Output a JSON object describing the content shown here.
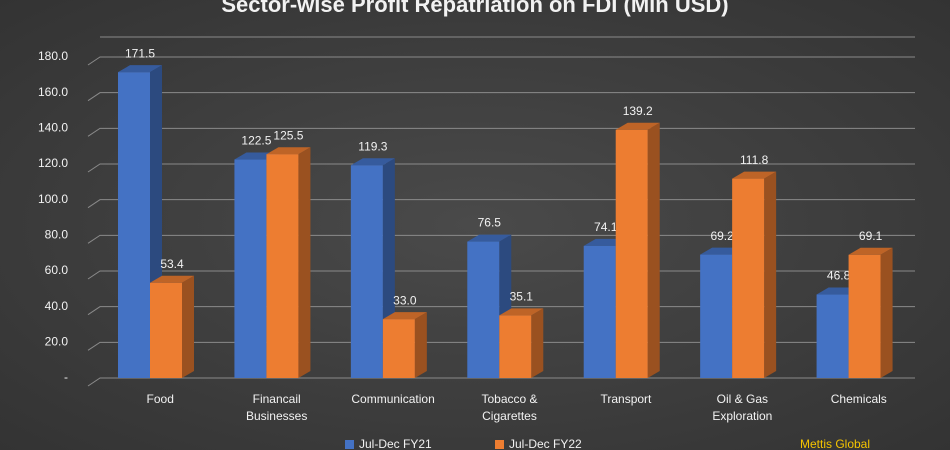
{
  "chart_data": {
    "type": "bar",
    "title": "Sector-wise Profit Repatriation on FDI (Mln USD)",
    "categories": [
      "Food",
      "Financail Businesses",
      "Communication",
      "Tobacco & Cigarettes",
      "Transport",
      "Oil & Gas Exploration",
      "Chemicals"
    ],
    "series": [
      {
        "name": "Jul-Dec FY21",
        "color": "#4472c4",
        "values": [
          171.5,
          122.5,
          119.3,
          76.5,
          74.1,
          69.2,
          46.8
        ],
        "value_labels": [
          "171.5",
          "122.5",
          "119.3",
          "76.5",
          "74.1",
          "69.2",
          "46.8"
        ]
      },
      {
        "name": "Jul-Dec FY22",
        "color": "#ed7d31",
        "values": [
          53.4,
          125.5,
          33.0,
          35.1,
          139.2,
          111.8,
          69.1
        ],
        "value_labels": [
          "53.4",
          "125.5",
          "33.0",
          "35.1",
          "139.2",
          "111.8",
          "69.1"
        ]
      }
    ],
    "ylim": [
      0,
      180
    ],
    "yticks": [
      {
        "value": 0,
        "label": "-"
      },
      {
        "value": 20,
        "label": "20.0"
      },
      {
        "value": 40,
        "label": "40.0"
      },
      {
        "value": 60,
        "label": "60.0"
      },
      {
        "value": 80,
        "label": "80.0"
      },
      {
        "value": 100,
        "label": "100.0"
      },
      {
        "value": 120,
        "label": "120.0"
      },
      {
        "value": 140,
        "label": "140.0"
      },
      {
        "value": 160,
        "label": "160.0"
      },
      {
        "value": 180,
        "label": "180.0"
      }
    ],
    "grid": true,
    "legend": "bottom",
    "watermark": "Mettis Global"
  }
}
